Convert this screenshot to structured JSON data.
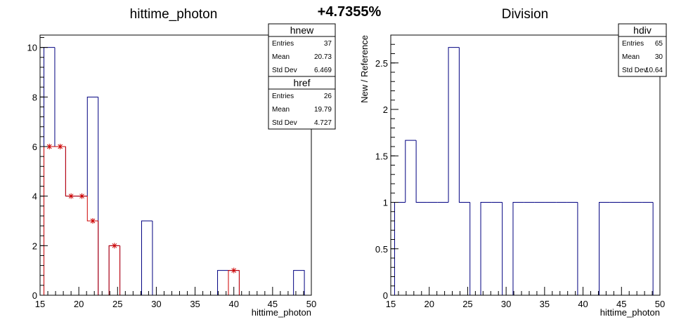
{
  "header": {
    "percent_label": "+4.7355%"
  },
  "chart_data": [
    {
      "type": "bar",
      "title": "hittime_photon",
      "xlabel": "hittime_photon",
      "ylabel": "",
      "xlim": [
        15,
        50
      ],
      "ylim": [
        0,
        10.5
      ],
      "x_ticks": [
        15,
        20,
        25,
        30,
        35,
        40,
        45,
        50
      ],
      "y_ticks": [
        0,
        2,
        4,
        6,
        8,
        10
      ],
      "bin_width": 1.4,
      "series": [
        {
          "name": "hnew",
          "color": "#000080",
          "style": "step",
          "bins": [
            {
              "x": 15.5,
              "y": 10
            },
            {
              "x": 16.9,
              "y": 6
            },
            {
              "x": 18.3,
              "y": 4
            },
            {
              "x": 19.7,
              "y": 4
            },
            {
              "x": 21.1,
              "y": 8
            },
            {
              "x": 22.5,
              "y": 0
            },
            {
              "x": 23.9,
              "y": 2
            },
            {
              "x": 25.3,
              "y": 0
            },
            {
              "x": 26.7,
              "y": 0
            },
            {
              "x": 28.1,
              "y": 3
            },
            {
              "x": 29.5,
              "y": 0
            },
            {
              "x": 30.9,
              "y": 0
            },
            {
              "x": 32.3,
              "y": 0
            },
            {
              "x": 33.7,
              "y": 0
            },
            {
              "x": 35.1,
              "y": 0
            },
            {
              "x": 36.5,
              "y": 0
            },
            {
              "x": 37.9,
              "y": 1
            },
            {
              "x": 39.3,
              "y": 1
            },
            {
              "x": 40.7,
              "y": 0
            },
            {
              "x": 42.1,
              "y": 0
            },
            {
              "x": 43.5,
              "y": 0
            },
            {
              "x": 44.9,
              "y": 0
            },
            {
              "x": 46.3,
              "y": 0
            },
            {
              "x": 47.7,
              "y": 1
            }
          ]
        },
        {
          "name": "href",
          "color": "#cc0000",
          "style": "step-with-markers",
          "bins": [
            {
              "x": 15.5,
              "y": 6
            },
            {
              "x": 16.9,
              "y": 6
            },
            {
              "x": 18.3,
              "y": 4
            },
            {
              "x": 19.7,
              "y": 4
            },
            {
              "x": 21.1,
              "y": 3
            },
            {
              "x": 22.5,
              "y": 0
            },
            {
              "x": 23.9,
              "y": 2
            },
            {
              "x": 25.3,
              "y": 0
            },
            {
              "x": 26.7,
              "y": 0
            },
            {
              "x": 28.1,
              "y": 0
            },
            {
              "x": 29.5,
              "y": 0
            },
            {
              "x": 30.9,
              "y": 0
            },
            {
              "x": 32.3,
              "y": 0
            },
            {
              "x": 33.7,
              "y": 0
            },
            {
              "x": 35.1,
              "y": 0
            },
            {
              "x": 36.5,
              "y": 0
            },
            {
              "x": 37.9,
              "y": 0
            },
            {
              "x": 39.3,
              "y": 1
            }
          ]
        }
      ],
      "stats": [
        {
          "name": "hnew",
          "rows": [
            {
              "label": "Entries",
              "value": "37"
            },
            {
              "label": "Mean",
              "value": "20.73"
            },
            {
              "label": "Std Dev",
              "value": "6.469"
            }
          ]
        },
        {
          "name": "href",
          "rows": [
            {
              "label": "Entries",
              "value": "26"
            },
            {
              "label": "Mean",
              "value": "19.79"
            },
            {
              "label": "Std Dev",
              "value": "4.727"
            }
          ]
        }
      ]
    },
    {
      "type": "bar",
      "title": "Division",
      "xlabel": "hittime_photon",
      "ylabel": "New / Reference",
      "xlim": [
        15,
        50
      ],
      "ylim": [
        0,
        2.8
      ],
      "x_ticks": [
        15,
        20,
        25,
        30,
        35,
        40,
        45,
        50
      ],
      "y_ticks": [
        0,
        0.5,
        1,
        1.5,
        2,
        2.5
      ],
      "y_tick_labels": [
        "0",
        "0.5",
        "1",
        "1.5",
        "2",
        "2.5"
      ],
      "bin_width": 1.4,
      "series": [
        {
          "name": "hdiv",
          "color": "#000080",
          "style": "step",
          "bins": [
            {
              "x": 15.5,
              "y": 1
            },
            {
              "x": 16.9,
              "y": 1.667
            },
            {
              "x": 18.3,
              "y": 1
            },
            {
              "x": 19.7,
              "y": 1
            },
            {
              "x": 21.1,
              "y": 1
            },
            {
              "x": 22.5,
              "y": 2.667
            },
            {
              "x": 23.9,
              "y": 1
            },
            {
              "x": 25.3,
              "y": 0
            },
            {
              "x": 26.7,
              "y": 1
            },
            {
              "x": 28.1,
              "y": 1
            },
            {
              "x": 29.5,
              "y": 0
            },
            {
              "x": 30.9,
              "y": 1
            },
            {
              "x": 32.3,
              "y": 1
            },
            {
              "x": 33.7,
              "y": 1
            },
            {
              "x": 35.1,
              "y": 1
            },
            {
              "x": 36.5,
              "y": 1
            },
            {
              "x": 37.9,
              "y": 1
            },
            {
              "x": 39.3,
              "y": 0
            },
            {
              "x": 40.7,
              "y": 0
            },
            {
              "x": 42.1,
              "y": 1
            },
            {
              "x": 43.5,
              "y": 1
            },
            {
              "x": 44.9,
              "y": 1
            },
            {
              "x": 46.3,
              "y": 1
            },
            {
              "x": 47.7,
              "y": 1
            },
            {
              "x": 49.1,
              "y": 0
            },
            {
              "x": 50.5,
              "y": 1
            }
          ]
        }
      ],
      "stats": [
        {
          "name": "hdiv",
          "rows": [
            {
              "label": "Entries",
              "value": "65"
            },
            {
              "label": "Mean",
              "value": "30"
            },
            {
              "label": "Std Dev",
              "value": "10.64"
            }
          ]
        }
      ]
    }
  ]
}
